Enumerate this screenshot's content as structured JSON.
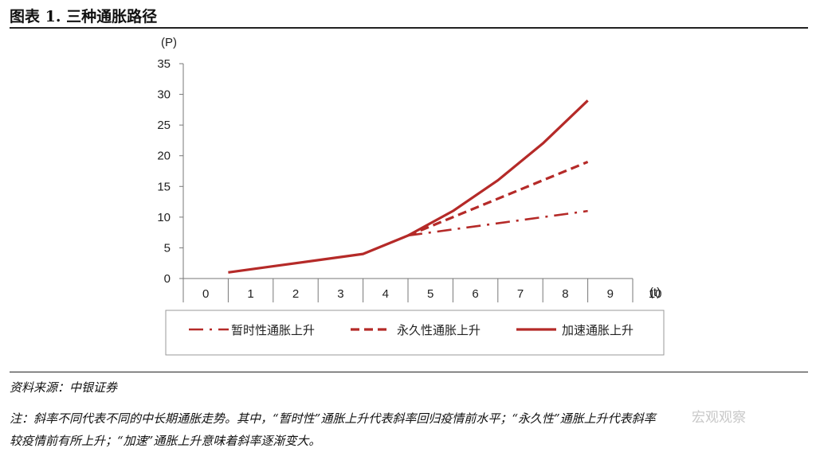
{
  "header": {
    "title": "图表 1. 三种通胀路径"
  },
  "footer": {
    "source": "资料来源：中银证券",
    "note_line1": "注：斜率不同代表不同的中长期通胀走势。其中，“暂时性”通胀上升代表斜率回归疫情前水平；“永久性”通胀上升代表斜率",
    "note_line2": "较疫情前有所上升；“加速”通胀上升意味着斜率逐渐变大。"
  },
  "watermark": "宏观观察",
  "chart_data": {
    "type": "line",
    "ylabel": "(P)",
    "xlabel": "(t)",
    "xlim": [
      0,
      10
    ],
    "ylim": [
      0,
      35
    ],
    "x_ticks": [
      0,
      1,
      2,
      3,
      4,
      5,
      6,
      7,
      8,
      9,
      10
    ],
    "y_ticks": [
      0,
      5,
      10,
      15,
      20,
      25,
      30,
      35
    ],
    "grid": false,
    "legend_position": "bottom",
    "series_color": "#b52a28",
    "series": [
      {
        "name": "暂时性通胀上升",
        "style": "dashdot",
        "x": [
          5,
          9
        ],
        "y": [
          7,
          11
        ]
      },
      {
        "name": "永久性通胀上升",
        "style": "dashed",
        "x": [
          5,
          9
        ],
        "y": [
          7,
          19
        ]
      },
      {
        "name": "加速通胀上升",
        "style": "solid",
        "x": [
          1,
          2,
          3,
          4,
          5,
          6,
          7,
          8,
          9
        ],
        "y": [
          1,
          2,
          3,
          4,
          7,
          11,
          16,
          22,
          29
        ]
      }
    ]
  }
}
